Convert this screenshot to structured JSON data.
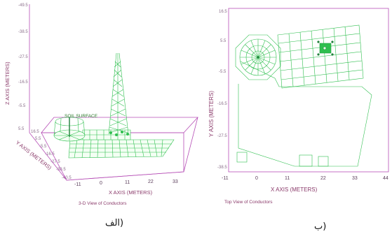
{
  "panel_3d": {
    "z_ticks": [
      "-49.5",
      "-38.5",
      "-27.5",
      "-16.5",
      "-5.5",
      "5.5"
    ],
    "z_axis_label": "Z AXIS (METERS)",
    "y_ticks": [
      "16.5",
      "5.5",
      "-5.5",
      "-16.5",
      "-27.5",
      "-38.5",
      "-40.5"
    ],
    "y_axis_label": "Y AXIS (METERS)",
    "x_ticks": [
      "-11",
      "0",
      "11",
      "22",
      "33"
    ],
    "x_axis_label": "X AXIS (METERS)",
    "soil_label": "SOIL SURFACE",
    "caption": "3-D View of Conductors",
    "subcaption": "الف)"
  },
  "panel_top": {
    "y_ticks": [
      "16.5",
      "5.5",
      "-5.5",
      "-16.5",
      "-27.5",
      "-38.5"
    ],
    "y_axis_label": "Y AXIS (METERS)",
    "x_ticks": [
      "-11",
      "0",
      "11",
      "22",
      "33",
      "44"
    ],
    "x_axis_label": "X AXIS (METERS)",
    "caption": "Top View of Conductors",
    "subcaption": "ب)"
  },
  "colors": {
    "conductor": "#2fbf4f",
    "axis": "#b64fb6",
    "label": "#8a3a6a"
  }
}
